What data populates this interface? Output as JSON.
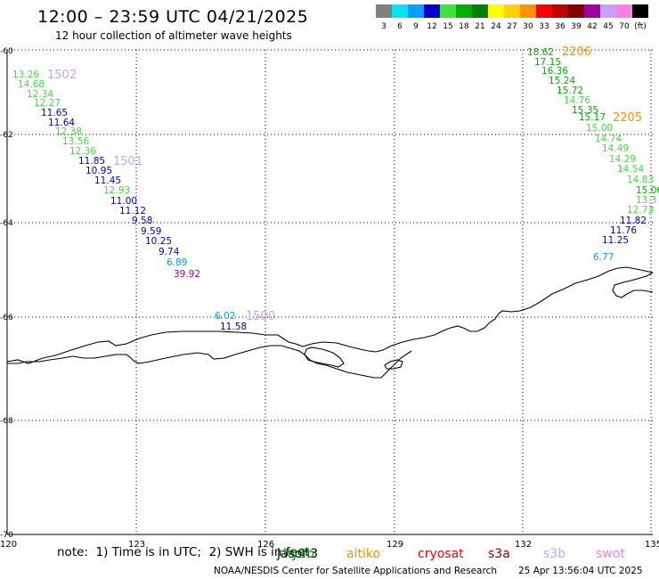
{
  "header": {
    "title": "12:00 – 23:59 UTC 04/21/2025",
    "subtitle": "12 hour collection of altimeter wave heights"
  },
  "legend": {
    "unit": "(ft)",
    "bins": [
      {
        "label": "3",
        "color": "#808080"
      },
      {
        "label": "6",
        "color": "#00e5ee"
      },
      {
        "label": "9",
        "color": "#00a0ff"
      },
      {
        "label": "12",
        "color": "#0000d0"
      },
      {
        "label": "15",
        "color": "#40e040"
      },
      {
        "label": "18",
        "color": "#00b000"
      },
      {
        "label": "21",
        "color": "#008000"
      },
      {
        "label": "24",
        "color": "#ffff00"
      },
      {
        "label": "27",
        "color": "#ffd000"
      },
      {
        "label": "30",
        "color": "#ff9000"
      },
      {
        "label": "33",
        "color": "#ff0000"
      },
      {
        "label": "36",
        "color": "#c00000"
      },
      {
        "label": "39",
        "color": "#800000"
      },
      {
        "label": "42",
        "color": "#a000a0"
      },
      {
        "label": "45",
        "color": "#c8a0ff"
      },
      {
        "label": "70",
        "color": "#ff80e0"
      },
      {
        "label": "",
        "color": "#000000"
      }
    ]
  },
  "axes": {
    "lat_labels": [
      "-60",
      "-62",
      "-64",
      "-66",
      "-68",
      "-70"
    ],
    "lon_labels": [
      "120",
      "123",
      "126",
      "129",
      "132",
      "135"
    ]
  },
  "passes": [
    {
      "id": "1502",
      "color": "#c8a0ff"
    },
    {
      "id": "1501",
      "color": "#c8a0ff"
    },
    {
      "id": "1500",
      "color": "#c8a0ff"
    },
    {
      "id": "2206",
      "color": "#ff9000"
    },
    {
      "id": "2205",
      "color": "#ff9000"
    }
  ],
  "wave_labels": [
    {
      "text": "13.26",
      "color": "#40e040"
    },
    {
      "text": "14.68",
      "color": "#40e040"
    },
    {
      "text": "12.34",
      "color": "#40e040"
    },
    {
      "text": "12.27",
      "color": "#40e040"
    },
    {
      "text": "11.65",
      "color": "#0000d0"
    },
    {
      "text": "11.64",
      "color": "#0000d0"
    },
    {
      "text": "12.38",
      "color": "#40e040"
    },
    {
      "text": "13.56",
      "color": "#40e040"
    },
    {
      "text": "12.36",
      "color": "#40e040"
    },
    {
      "text": "11.85",
      "color": "#0000d0"
    },
    {
      "text": "10.95",
      "color": "#0000d0"
    },
    {
      "text": "11.45",
      "color": "#0000d0"
    },
    {
      "text": "12.93",
      "color": "#40e040"
    },
    {
      "text": "11.00",
      "color": "#0000d0"
    },
    {
      "text": "11.12",
      "color": "#0000d0"
    },
    {
      "text": "9.58",
      "color": "#0000d0"
    },
    {
      "text": "9.59",
      "color": "#0000d0"
    },
    {
      "text": "10.25",
      "color": "#0000d0"
    },
    {
      "text": "9.74",
      "color": "#0000d0"
    },
    {
      "text": "6.89",
      "color": "#00a0ff"
    },
    {
      "text": "39.92",
      "color": "#a000a0"
    },
    {
      "text": "6.02",
      "color": "#00a0ff"
    },
    {
      "text": "11.58",
      "color": "#0000d0"
    },
    {
      "text": "18.62",
      "color": "#00b000"
    },
    {
      "text": "17.15",
      "color": "#00b000"
    },
    {
      "text": "16.36",
      "color": "#00b000"
    },
    {
      "text": "15.24",
      "color": "#00b000"
    },
    {
      "text": "15.72",
      "color": "#00b000"
    },
    {
      "text": "14.76",
      "color": "#40e040"
    },
    {
      "text": "15.35",
      "color": "#00b000"
    },
    {
      "text": "15.17",
      "color": "#00b000"
    },
    {
      "text": "15.00",
      "color": "#40e040"
    },
    {
      "text": "14.74",
      "color": "#40e040"
    },
    {
      "text": "14.49",
      "color": "#40e040"
    },
    {
      "text": "14.29",
      "color": "#40e040"
    },
    {
      "text": "14.54",
      "color": "#40e040"
    },
    {
      "text": "14.83",
      "color": "#40e040"
    },
    {
      "text": "15.06",
      "color": "#00b000"
    },
    {
      "text": "13.3",
      "color": "#40e040"
    },
    {
      "text": "12.73",
      "color": "#40e040"
    },
    {
      "text": "11.82",
      "color": "#0000d0"
    },
    {
      "text": "11.76",
      "color": "#0000d0"
    },
    {
      "text": "11.25",
      "color": "#0000d0"
    },
    {
      "text": "6.77",
      "color": "#00a0ff"
    }
  ],
  "satellites": [
    {
      "name": "jason3",
      "color": "#000000"
    },
    {
      "name": "hy2b",
      "color": "#00a000"
    },
    {
      "name": "altiko",
      "color": "#ff9000"
    },
    {
      "name": "cryosat",
      "color": "#ff0000"
    },
    {
      "name": "s3a",
      "color": "#a00000"
    },
    {
      "name": "s3b",
      "color": "#c8a0ff"
    },
    {
      "name": "swot",
      "color": "#ff80e0"
    }
  ],
  "footer": {
    "note": "note:  1) Time is in UTC;  2) SWH is in feet",
    "credits": "NOAA/NESDIS Center for Satellite Applications and Research",
    "timestamp": "25 Apr 13:56:04 UTC 2025"
  }
}
